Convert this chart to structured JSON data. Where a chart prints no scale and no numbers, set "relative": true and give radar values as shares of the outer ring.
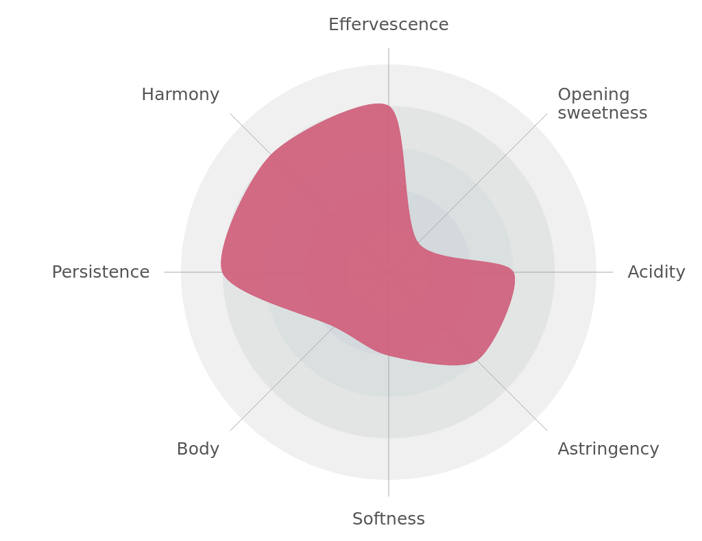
{
  "chart_data": {
    "type": "radar",
    "relative": true,
    "grid": true,
    "categories": [
      "Effervescence",
      "Opening sweetness",
      "Acidity",
      "Astringency",
      "Softness",
      "Body",
      "Persistence",
      "Harmony"
    ],
    "series": [
      {
        "color": "#d0607c",
        "values": [
          0.8,
          0.2,
          0.6,
          0.6,
          0.4,
          0.37,
          0.8,
          0.8
        ]
      }
    ]
  }
}
